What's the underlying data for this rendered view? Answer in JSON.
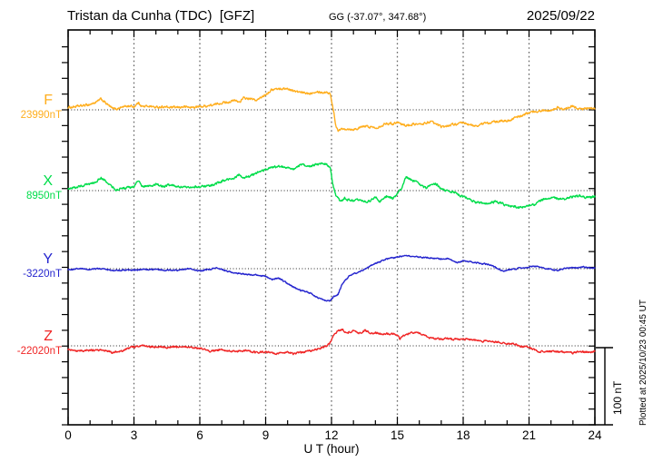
{
  "header": {
    "title": "Tristan da Cunha (TDC)  [GFZ]",
    "coords": "GG (-37.07°, 347.68°)",
    "date": "2025/09/22"
  },
  "chart_data": {
    "type": "line",
    "title": "Tristan da Cunha (TDC)  [GFZ]",
    "station_coords": "GG (-37.07°, 347.68°)",
    "date": "2025/09/22",
    "xlabel": "U T (hour)",
    "x_ticks": [
      0,
      3,
      6,
      9,
      12,
      15,
      18,
      21,
      24
    ],
    "x_range": [
      0,
      24
    ],
    "grid": "vertical-dotted-every-3h",
    "scale_bar": {
      "label": "100 nT",
      "nT": 100
    },
    "plotted_at": "Plotted at 2025/10/23 00:45 UT",
    "series_note": "points are [hour UT, offset in nT from the listed base value]",
    "series": [
      {
        "name": "F",
        "base_label": "23990nT",
        "base_value": 23990,
        "color": "#FFAE1E",
        "points": [
          [
            0,
            3
          ],
          [
            0.3,
            4
          ],
          [
            0.6,
            5
          ],
          [
            1,
            7
          ],
          [
            1.3,
            10
          ],
          [
            1.5,
            14
          ],
          [
            1.7,
            9
          ],
          [
            2,
            2
          ],
          [
            2.2,
            1
          ],
          [
            2.5,
            4
          ],
          [
            2.8,
            5
          ],
          [
            3,
            4
          ],
          [
            3.2,
            9
          ],
          [
            3.4,
            4
          ],
          [
            3.7,
            5
          ],
          [
            4,
            3
          ],
          [
            4.3,
            4
          ],
          [
            4.6,
            3
          ],
          [
            5,
            3
          ],
          [
            5.3,
            4
          ],
          [
            5.6,
            3
          ],
          [
            6,
            4
          ],
          [
            6.3,
            5
          ],
          [
            6.6,
            6
          ],
          [
            7,
            9
          ],
          [
            7.3,
            10
          ],
          [
            7.6,
            12
          ],
          [
            7.8,
            10
          ],
          [
            8,
            15
          ],
          [
            8.3,
            14
          ],
          [
            8.6,
            12
          ],
          [
            9,
            20
          ],
          [
            9.3,
            26
          ],
          [
            9.6,
            27
          ],
          [
            10,
            27
          ],
          [
            10.3,
            24
          ],
          [
            10.6,
            22
          ],
          [
            11,
            21
          ],
          [
            11.3,
            24
          ],
          [
            11.6,
            22
          ],
          [
            11.8,
            23
          ],
          [
            11.95,
            20
          ],
          [
            12.05,
            5
          ],
          [
            12.2,
            -20
          ],
          [
            12.3,
            -26
          ],
          [
            12.6,
            -24
          ],
          [
            13,
            -25
          ],
          [
            13.3,
            -23
          ],
          [
            13.5,
            -21
          ],
          [
            13.8,
            -22
          ],
          [
            14,
            -23
          ],
          [
            14.3,
            -20
          ],
          [
            14.5,
            -17
          ],
          [
            14.8,
            -18
          ],
          [
            15,
            -15
          ],
          [
            15.2,
            -19
          ],
          [
            15.5,
            -20
          ],
          [
            15.8,
            -18
          ],
          [
            16,
            -19
          ],
          [
            16.3,
            -17
          ],
          [
            16.5,
            -15
          ],
          [
            16.8,
            -19
          ],
          [
            17,
            -22
          ],
          [
            17.3,
            -20
          ],
          [
            17.5,
            -19
          ],
          [
            17.8,
            -18
          ],
          [
            18,
            -17
          ],
          [
            18.3,
            -19
          ],
          [
            18.5,
            -21
          ],
          [
            18.8,
            -19
          ],
          [
            19,
            -17
          ],
          [
            19.3,
            -16
          ],
          [
            19.6,
            -15
          ],
          [
            20,
            -14
          ],
          [
            20.3,
            -11
          ],
          [
            20.6,
            -8
          ],
          [
            21,
            -4
          ],
          [
            21.3,
            -2
          ],
          [
            21.6,
            -1
          ],
          [
            22,
            0
          ],
          [
            22.3,
            3
          ],
          [
            22.6,
            0
          ],
          [
            23,
            5
          ],
          [
            23.2,
            2
          ],
          [
            23.5,
            1
          ],
          [
            23.8,
            2
          ],
          [
            24,
            1
          ]
        ]
      },
      {
        "name": "X",
        "base_label": "8950nT",
        "base_value": 8950,
        "color": "#00DD4A",
        "points": [
          [
            0,
            3
          ],
          [
            0.3,
            4
          ],
          [
            0.6,
            6
          ],
          [
            1,
            8
          ],
          [
            1.3,
            12
          ],
          [
            1.5,
            16
          ],
          [
            1.7,
            12
          ],
          [
            2,
            5
          ],
          [
            2.2,
            1
          ],
          [
            2.5,
            3
          ],
          [
            2.8,
            4
          ],
          [
            3,
            5
          ],
          [
            3.2,
            13
          ],
          [
            3.4,
            5
          ],
          [
            3.7,
            6
          ],
          [
            4,
            8
          ],
          [
            4.3,
            5
          ],
          [
            4.6,
            7
          ],
          [
            5,
            6
          ],
          [
            5.3,
            4
          ],
          [
            5.6,
            5
          ],
          [
            6,
            5
          ],
          [
            6.3,
            6
          ],
          [
            6.6,
            7
          ],
          [
            7,
            12
          ],
          [
            7.3,
            14
          ],
          [
            7.6,
            16
          ],
          [
            7.8,
            21
          ],
          [
            8,
            16
          ],
          [
            8.3,
            19
          ],
          [
            8.6,
            23
          ],
          [
            9,
            27
          ],
          [
            9.3,
            30
          ],
          [
            9.6,
            31
          ],
          [
            10,
            30
          ],
          [
            10.3,
            28
          ],
          [
            10.6,
            33
          ],
          [
            11,
            30
          ],
          [
            11.3,
            34
          ],
          [
            11.6,
            35
          ],
          [
            11.8,
            33
          ],
          [
            11.95,
            29
          ],
          [
            12.05,
            10
          ],
          [
            12.2,
            -6
          ],
          [
            12.4,
            -14
          ],
          [
            12.6,
            -10
          ],
          [
            13,
            -14
          ],
          [
            13.3,
            -12
          ],
          [
            13.6,
            -15
          ],
          [
            14,
            -9
          ],
          [
            14.2,
            -14
          ],
          [
            14.5,
            -7
          ],
          [
            14.8,
            -11
          ],
          [
            15,
            -3
          ],
          [
            15.2,
            2
          ],
          [
            15.4,
            18
          ],
          [
            15.6,
            14
          ],
          [
            15.8,
            12
          ],
          [
            16,
            8
          ],
          [
            16.3,
            3
          ],
          [
            16.6,
            8
          ],
          [
            16.8,
            8
          ],
          [
            17,
            2
          ],
          [
            17.3,
            -1
          ],
          [
            17.6,
            -2
          ],
          [
            18,
            -8
          ],
          [
            18.3,
            -12
          ],
          [
            18.6,
            -15
          ],
          [
            19,
            -17
          ],
          [
            19.3,
            -15
          ],
          [
            19.5,
            -14
          ],
          [
            19.8,
            -17
          ],
          [
            20,
            -19
          ],
          [
            20.3,
            -20
          ],
          [
            20.6,
            -22
          ],
          [
            21,
            -19
          ],
          [
            21.3,
            -17
          ],
          [
            21.6,
            -12
          ],
          [
            22,
            -9
          ],
          [
            22.3,
            -10
          ],
          [
            22.6,
            -11
          ],
          [
            23,
            -8
          ],
          [
            23.3,
            -6
          ],
          [
            23.6,
            -9
          ],
          [
            24,
            -8
          ]
        ]
      },
      {
        "name": "Y",
        "base_label": "-3220nT",
        "base_value": -3220,
        "color": "#2424CE",
        "points": [
          [
            0,
            -1
          ],
          [
            0.5,
            0
          ],
          [
            1,
            -1
          ],
          [
            1.5,
            0
          ],
          [
            2,
            -2
          ],
          [
            2.5,
            -2
          ],
          [
            3,
            -2
          ],
          [
            3.5,
            -1
          ],
          [
            4,
            -1
          ],
          [
            4.5,
            -2
          ],
          [
            5,
            -2
          ],
          [
            5.5,
            0
          ],
          [
            6,
            -3
          ],
          [
            6.4,
            -1
          ],
          [
            6.8,
            1
          ],
          [
            7.2,
            -3
          ],
          [
            7.5,
            -5
          ],
          [
            8,
            -7
          ],
          [
            8.5,
            -8
          ],
          [
            9,
            -10
          ],
          [
            9.3,
            -14
          ],
          [
            9.6,
            -12
          ],
          [
            10,
            -19
          ],
          [
            10.3,
            -24
          ],
          [
            10.6,
            -28
          ],
          [
            11,
            -31
          ],
          [
            11.3,
            -36
          ],
          [
            11.6,
            -40
          ],
          [
            11.9,
            -42
          ],
          [
            12.1,
            -36
          ],
          [
            12.3,
            -33
          ],
          [
            12.5,
            -19
          ],
          [
            12.8,
            -10
          ],
          [
            13,
            -7
          ],
          [
            13.5,
            -1
          ],
          [
            14,
            7
          ],
          [
            14.5,
            12
          ],
          [
            15,
            15
          ],
          [
            15.3,
            17
          ],
          [
            15.6,
            16
          ],
          [
            16,
            15
          ],
          [
            16.5,
            14
          ],
          [
            17,
            12
          ],
          [
            17.3,
            13
          ],
          [
            17.7,
            8
          ],
          [
            18,
            10
          ],
          [
            18.3,
            9
          ],
          [
            18.7,
            7
          ],
          [
            19,
            6
          ],
          [
            19.3,
            5
          ],
          [
            19.5,
            1
          ],
          [
            19.8,
            -3
          ],
          [
            20,
            -2
          ],
          [
            20.5,
            0
          ],
          [
            21,
            2
          ],
          [
            21.3,
            3
          ],
          [
            21.7,
            1
          ],
          [
            22,
            -1
          ],
          [
            22.3,
            -2
          ],
          [
            22.6,
            0
          ],
          [
            23,
            1
          ],
          [
            23.5,
            2
          ],
          [
            24,
            1
          ]
        ]
      },
      {
        "name": "Z",
        "base_label": "-22020nT",
        "base_value": -22020,
        "color": "#F02525",
        "points": [
          [
            0,
            -5
          ],
          [
            0.5,
            -7
          ],
          [
            1,
            -6
          ],
          [
            1.5,
            -5
          ],
          [
            2,
            -8
          ],
          [
            2.5,
            -6
          ],
          [
            3,
            -1
          ],
          [
            3.3,
            0
          ],
          [
            3.7,
            -1
          ],
          [
            4,
            -1
          ],
          [
            4.5,
            -2
          ],
          [
            5,
            -1
          ],
          [
            5.5,
            -2
          ],
          [
            6,
            -3
          ],
          [
            6.5,
            -7
          ],
          [
            7,
            -5
          ],
          [
            7.5,
            -7
          ],
          [
            8,
            -6
          ],
          [
            8.5,
            -8
          ],
          [
            9,
            -8
          ],
          [
            9.5,
            -10
          ],
          [
            10,
            -8
          ],
          [
            10.3,
            -10
          ],
          [
            10.7,
            -8
          ],
          [
            11,
            -7
          ],
          [
            11.4,
            -4
          ],
          [
            11.7,
            -1
          ],
          [
            11.9,
            2
          ],
          [
            12.1,
            14
          ],
          [
            12.3,
            19
          ],
          [
            12.5,
            21
          ],
          [
            12.7,
            17
          ],
          [
            13,
            19
          ],
          [
            13.3,
            16
          ],
          [
            13.5,
            20
          ],
          [
            13.8,
            16
          ],
          [
            14,
            17
          ],
          [
            14.3,
            15
          ],
          [
            14.6,
            16
          ],
          [
            15,
            14
          ],
          [
            15.1,
            9
          ],
          [
            15.3,
            13
          ],
          [
            15.6,
            17
          ],
          [
            16,
            16
          ],
          [
            16.3,
            12
          ],
          [
            16.6,
            9
          ],
          [
            17,
            9
          ],
          [
            17.3,
            9
          ],
          [
            17.6,
            8
          ],
          [
            18,
            9
          ],
          [
            18.3,
            8
          ],
          [
            18.6,
            7
          ],
          [
            19,
            6
          ],
          [
            19.3,
            5
          ],
          [
            19.6,
            5
          ],
          [
            20,
            3
          ],
          [
            20.3,
            2
          ],
          [
            20.6,
            0
          ],
          [
            21,
            -2
          ],
          [
            21.4,
            -7
          ],
          [
            21.7,
            -8
          ],
          [
            22,
            -7
          ],
          [
            22.5,
            -8
          ],
          [
            23,
            -9
          ],
          [
            23.3,
            -7
          ],
          [
            23.6,
            -8
          ],
          [
            24,
            -7
          ]
        ]
      }
    ]
  }
}
